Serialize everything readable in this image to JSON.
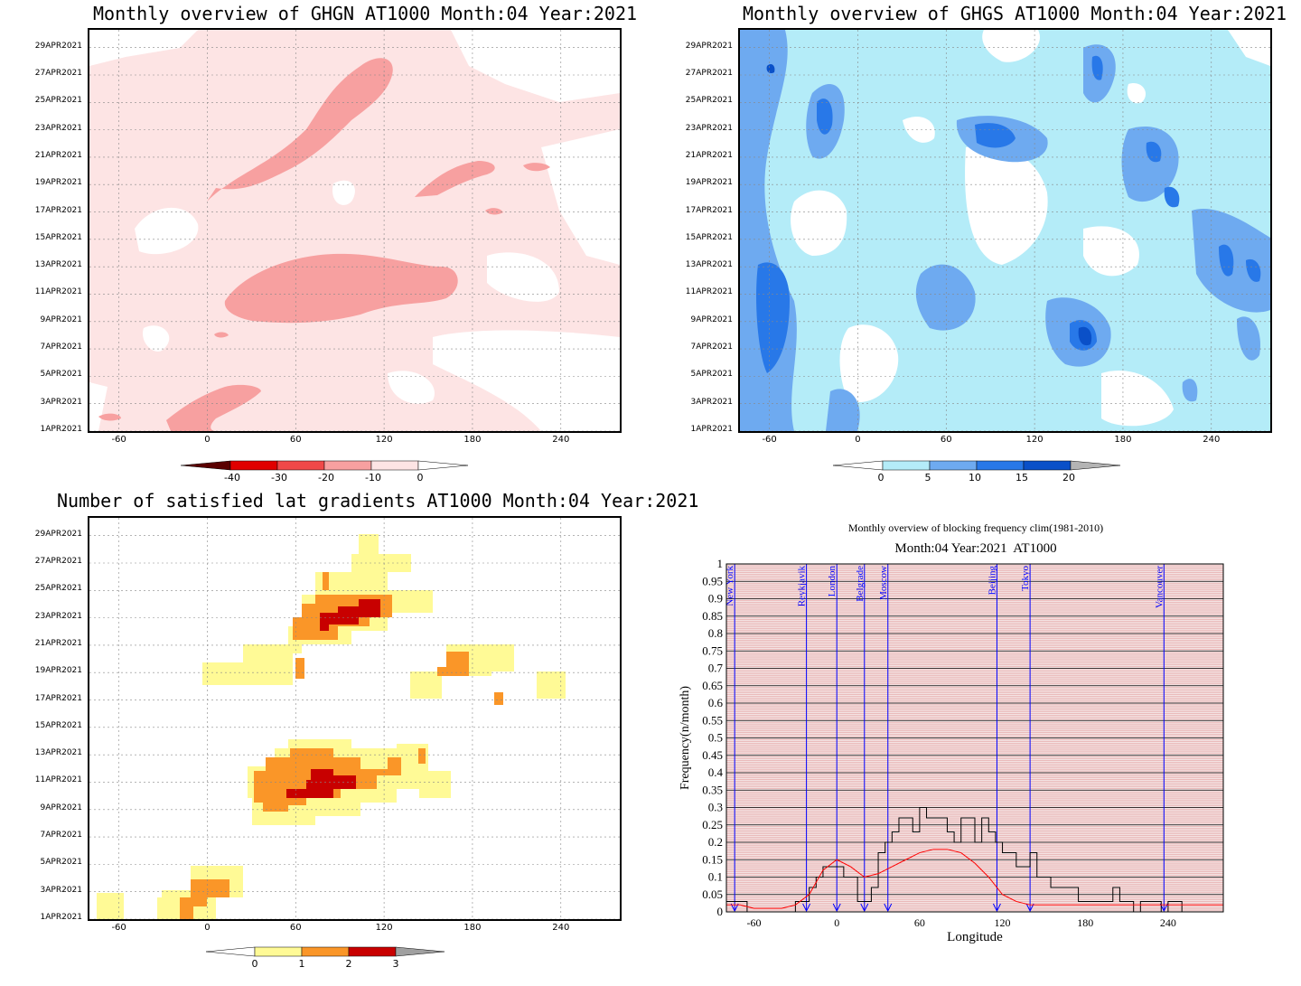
{
  "colors": {
    "red_levels": [
      "#5a0000",
      "#e00000",
      "#f04848",
      "#f7a0a0",
      "#fde4e4",
      "#ffffff"
    ],
    "blue_levels": [
      "#ffffff",
      "#b4ecf8",
      "#6eaaf0",
      "#2878e8",
      "#0a50c8",
      "#b4b4b4"
    ],
    "count_levels": [
      "#ffffff",
      "#fffa96",
      "#fa9628",
      "#c80000",
      "#a0a0a0"
    ],
    "hatch_red": "#e09090",
    "hatch_black": "#000000",
    "city_line": "#0000ff",
    "freq_line": "#000000",
    "clim_line": "#ff0000"
  },
  "chart_data": [
    {
      "type": "heatmap",
      "title": "Monthly overview of GHGN AT1000 Month:04 Year:2021",
      "x_ticks": [
        "-60",
        "0",
        "60",
        "120",
        "180",
        "240"
      ],
      "y_ticks": [
        "1APR2021",
        "3APR2021",
        "5APR2021",
        "7APR2021",
        "9APR2021",
        "11APR2021",
        "13APR2021",
        "15APR2021",
        "17APR2021",
        "19APR2021",
        "21APR2021",
        "23APR2021",
        "25APR2021",
        "27APR2021",
        "29APR2021"
      ],
      "xlim": [
        -80,
        280
      ],
      "colorbar": {
        "labels": [
          "-40",
          "-30",
          "-20",
          "-10",
          "0"
        ]
      }
    },
    {
      "type": "heatmap",
      "title": "Monthly overview of GHGS AT1000 Month:04 Year:2021",
      "x_ticks": [
        "-60",
        "0",
        "60",
        "120",
        "180",
        "240"
      ],
      "y_ticks": [
        "1APR2021",
        "3APR2021",
        "5APR2021",
        "7APR2021",
        "9APR2021",
        "11APR2021",
        "13APR2021",
        "15APR2021",
        "17APR2021",
        "19APR2021",
        "21APR2021",
        "23APR2021",
        "25APR2021",
        "27APR2021",
        "29APR2021"
      ],
      "xlim": [
        -80,
        280
      ],
      "colorbar": {
        "labels": [
          "0",
          "5",
          "10",
          "15",
          "20"
        ]
      }
    },
    {
      "type": "heatmap",
      "title": "Number of satisfied lat gradients AT1000 Month:04 Year:2021",
      "x_ticks": [
        "-60",
        "0",
        "60",
        "120",
        "180",
        "240"
      ],
      "y_ticks": [
        "1APR2021",
        "3APR2021",
        "5APR2021",
        "7APR2021",
        "9APR2021",
        "11APR2021",
        "13APR2021",
        "15APR2021",
        "17APR2021",
        "19APR2021",
        "21APR2021",
        "23APR2021",
        "25APR2021",
        "27APR2021",
        "29APR2021"
      ],
      "xlim": [
        -80,
        280
      ],
      "colorbar": {
        "labels": [
          "0",
          "1",
          "2",
          "3"
        ]
      }
    },
    {
      "type": "line",
      "suptitle": "Monthly overview of blocking frequency clim(1981-2010)",
      "title": "Month:04 Year:2021  AT1000",
      "xlabel": "Longitude",
      "ylabel": "Frequency(n/month)",
      "xlim": [
        -80,
        280
      ],
      "ylim": [
        0,
        1
      ],
      "x_ticks": [
        "-60",
        "0",
        "60",
        "120",
        "180",
        "240"
      ],
      "y_ticks": [
        "0",
        "0.05",
        "0.1",
        "0.15",
        "0.2",
        "0.25",
        "0.3",
        "0.35",
        "0.4",
        "0.45",
        "0.5",
        "0.55",
        "0.6",
        "0.65",
        "0.7",
        "0.75",
        "0.8",
        "0.85",
        "0.9",
        "0.95",
        "1"
      ],
      "cities": [
        {
          "name": "New York",
          "lon": -74
        },
        {
          "name": "Reykjavik",
          "lon": -22
        },
        {
          "name": "London",
          "lon": 0
        },
        {
          "name": "Belgrade",
          "lon": 20
        },
        {
          "name": "Moscow",
          "lon": 37
        },
        {
          "name": "Beijing",
          "lon": 116
        },
        {
          "name": "Tokyo",
          "lon": 140
        },
        {
          "name": "Vancouver",
          "lon": 237
        }
      ],
      "series": [
        {
          "x": [
            -80,
            -75,
            -70,
            -65,
            -60,
            -55,
            -50,
            -45,
            -40,
            -35,
            -30,
            -25,
            -20,
            -15,
            -10,
            -5,
            0,
            5,
            10,
            15,
            20,
            25,
            30,
            35,
            40,
            45,
            50,
            55,
            60,
            65,
            70,
            75,
            80,
            85,
            90,
            95,
            100,
            105,
            110,
            115,
            120,
            125,
            130,
            135,
            140,
            145,
            150,
            155,
            160,
            165,
            170,
            175,
            180,
            185,
            190,
            195,
            200,
            205,
            210,
            215,
            220,
            225,
            230,
            235,
            240,
            245,
            250,
            255,
            260,
            265,
            270,
            275,
            280
          ],
          "y": [
            0.03,
            0.03,
            0.03,
            0,
            0,
            0,
            0,
            0,
            0,
            0,
            0.03,
            0.03,
            0.07,
            0.1,
            0.13,
            0.13,
            0.13,
            0.1,
            0.1,
            0.03,
            0.03,
            0.07,
            0.17,
            0.2,
            0.23,
            0.27,
            0.27,
            0.23,
            0.3,
            0.27,
            0.27,
            0.27,
            0.23,
            0.2,
            0.27,
            0.27,
            0.2,
            0.27,
            0.23,
            0.2,
            0.17,
            0.17,
            0.13,
            0.13,
            0.17,
            0.1,
            0.1,
            0.07,
            0.07,
            0.07,
            0.07,
            0.03,
            0.03,
            0.03,
            0.03,
            0.03,
            0.07,
            0.03,
            0.03,
            0,
            0.03,
            0.03,
            0.03,
            0,
            0.03,
            0.03,
            0,
            0,
            0,
            0,
            0,
            0,
            0
          ]
        },
        {
          "x": [
            -80,
            -70,
            -60,
            -50,
            -40,
            -30,
            -20,
            -10,
            0,
            10,
            20,
            30,
            40,
            50,
            60,
            70,
            80,
            90,
            100,
            110,
            120,
            130,
            140,
            150,
            160,
            170,
            180,
            190,
            200,
            210,
            220,
            230,
            240,
            250,
            260,
            270,
            280
          ],
          "y": [
            0.02,
            0.02,
            0.01,
            0.01,
            0.01,
            0.02,
            0.05,
            0.12,
            0.15,
            0.13,
            0.1,
            0.11,
            0.13,
            0.15,
            0.17,
            0.18,
            0.18,
            0.17,
            0.14,
            0.1,
            0.05,
            0.03,
            0.02,
            0.02,
            0.02,
            0.02,
            0.02,
            0.02,
            0.02,
            0.02,
            0.02,
            0.02,
            0.02,
            0.02,
            0.02,
            0.02,
            0.02
          ]
        }
      ]
    }
  ]
}
